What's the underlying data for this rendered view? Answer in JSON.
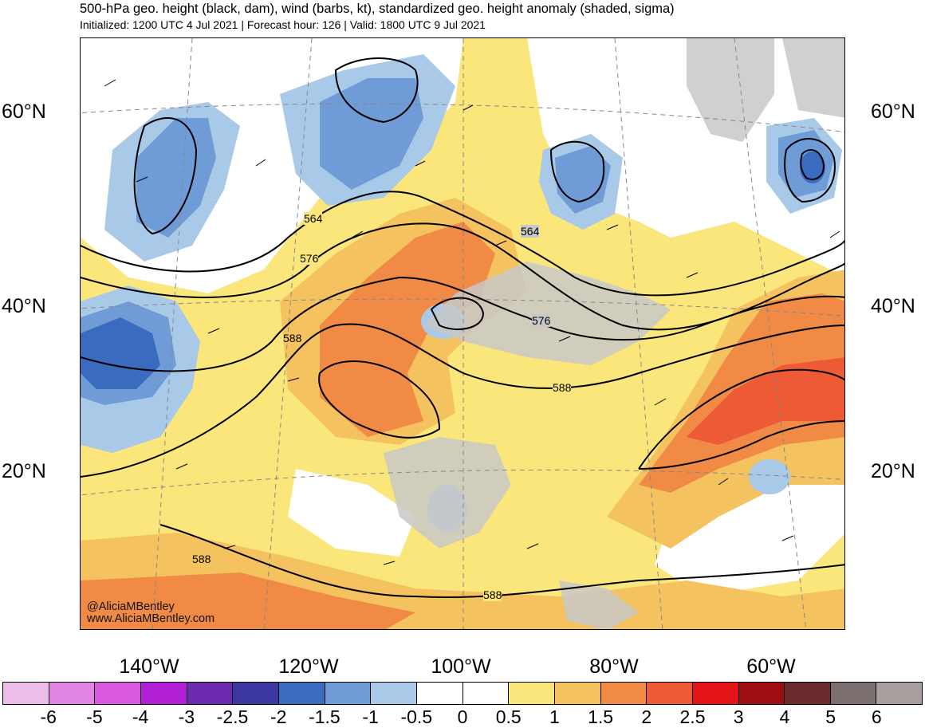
{
  "header": {
    "title": "500-hPa geo. height (black, dam), wind (barbs, kt), standardized geo. height anomaly (shaded, sigma)",
    "subtitle": "Initialized: 1200 UTC 4 Jul 2021 | Forecast hour: 126 | Valid: 1800 UTC 9 Jul 2021"
  },
  "map": {
    "lat_labels": [
      "60°N",
      "40°N",
      "20°N"
    ],
    "lon_labels": [
      "140°W",
      "120°W",
      "100°W",
      "80°W",
      "60°W"
    ],
    "contour_labels": [
      "564",
      "564",
      "576",
      "576",
      "588",
      "588",
      "588",
      "588"
    ],
    "credit": [
      "@AliciaMBentley",
      "www.AliciaMBentley.com"
    ]
  },
  "colorbar": {
    "ticks": [
      "-6",
      "-5",
      "-4",
      "-3",
      "-2.5",
      "-2",
      "-1.5",
      "-1",
      "-0.5",
      "0",
      "0.5",
      "1",
      "1.5",
      "2",
      "2.5",
      "3",
      "4",
      "5",
      "6"
    ],
    "colors": [
      "#ecbde8",
      "#e284e4",
      "#d95ae0",
      "#b220d6",
      "#6d2ab0",
      "#3c36a0",
      "#3a6bbf",
      "#6f9bd6",
      "#a8c9e8",
      "#ffffff",
      "#ffffff",
      "#fae67a",
      "#f5c260",
      "#f08a45",
      "#ed5a35",
      "#e41519",
      "#9c0e10",
      "#6a2c2c",
      "#7c6f6f",
      "#a99e9e"
    ]
  }
}
